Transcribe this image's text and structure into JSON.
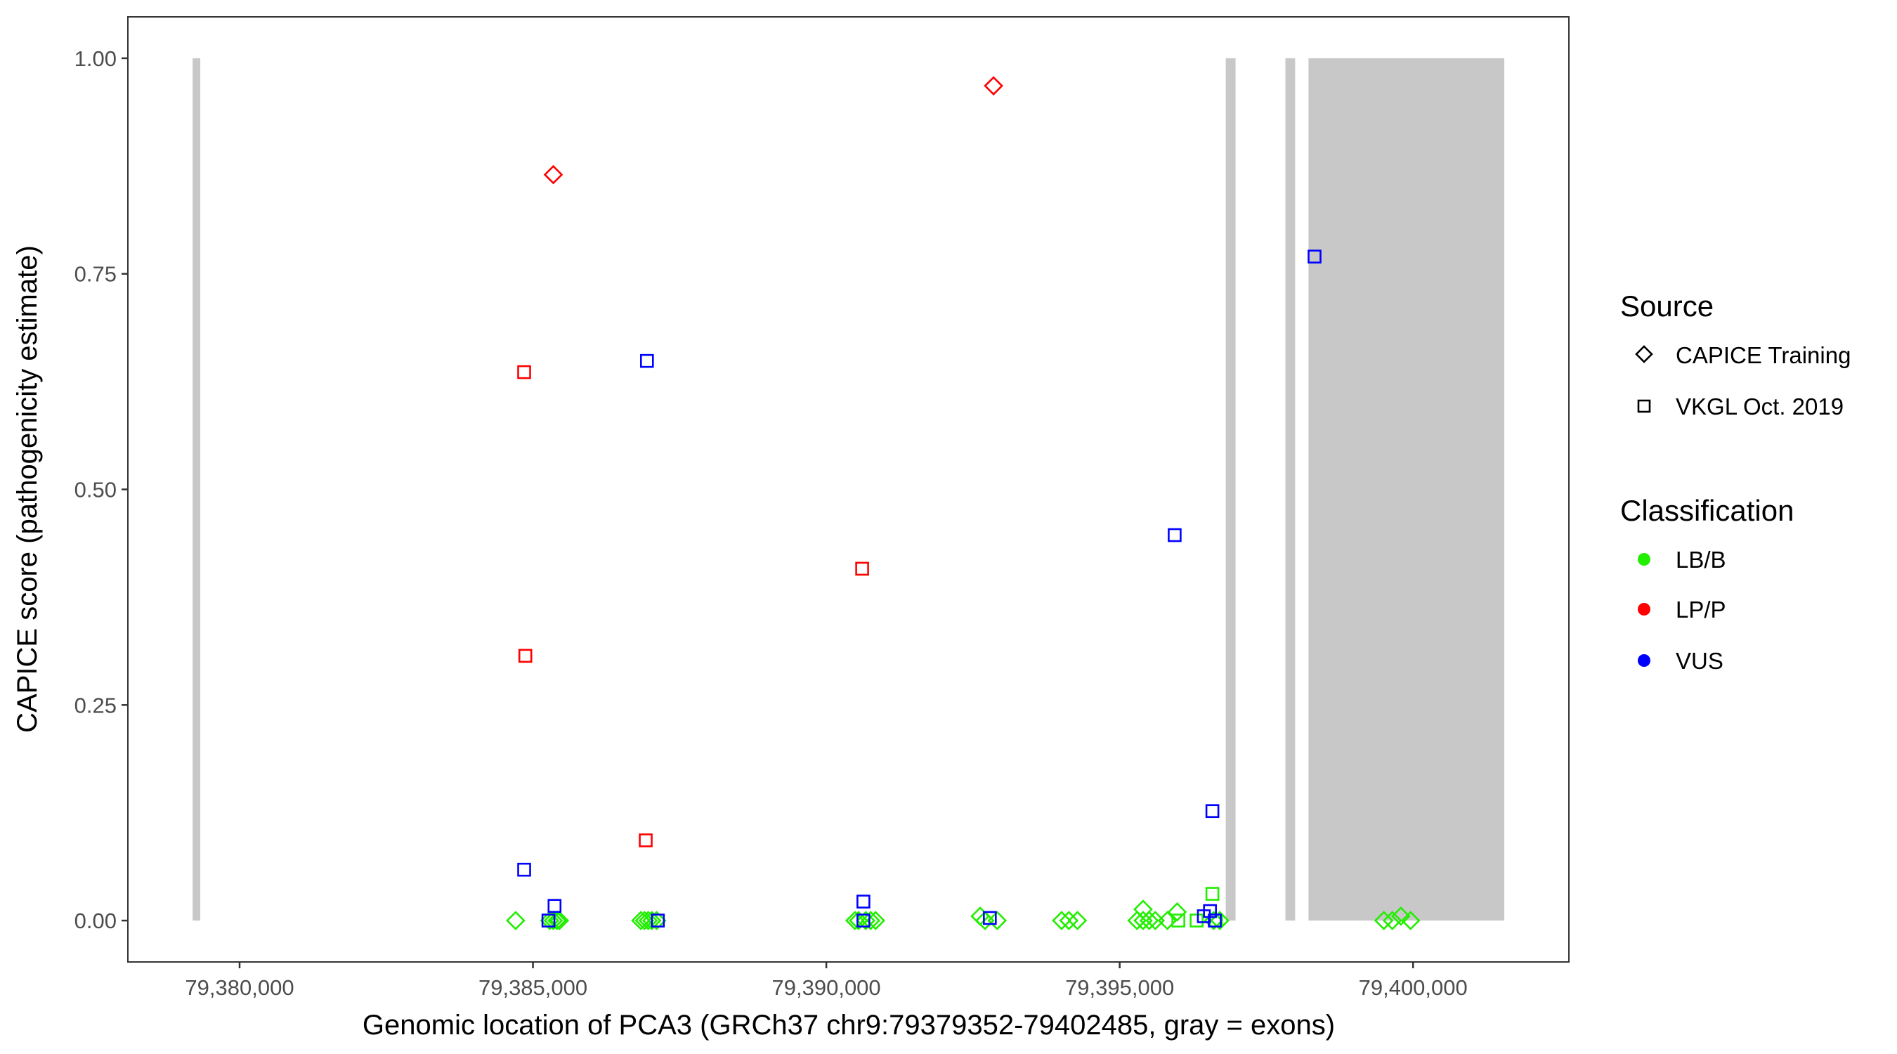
{
  "chart_data": {
    "type": "scatter",
    "title": "",
    "xlabel": "Genomic location of PCA3 (GRCh37 chr9:79379352-79402485, gray = exons)",
    "ylabel": "CAPICE score (pathogenicity estimate)",
    "xlim": [
      79378096,
      79402656
    ],
    "ylim": [
      -0.048,
      1.048
    ],
    "x_ticks": [
      79380000,
      79385000,
      79390000,
      79395000,
      79400000
    ],
    "x_tick_labels": [
      "79,380,000",
      "79,385,000",
      "79,390,000",
      "79,395,000",
      "79,400,000"
    ],
    "y_ticks": [
      0,
      0.25,
      0.5,
      0.75,
      1.0
    ],
    "y_tick_labels": [
      "0.00",
      "0.25",
      "0.50",
      "0.75",
      "1.00"
    ],
    "grid": false,
    "exons": [
      [
        79379200,
        79379330
      ],
      [
        79396808,
        79396975
      ],
      [
        79397824,
        79397990
      ],
      [
        79398218,
        79401555
      ]
    ],
    "exon_ymax": 1.0,
    "exon_color": "#c8c8c8",
    "colors": {
      "LB/B": "#22ee00",
      "LP/P": "#ff0000",
      "VUS": "#0000ff"
    },
    "legend": {
      "placement": "right",
      "source_title": "Source",
      "source_items": [
        {
          "label": "CAPICE Training",
          "shape": "diamond"
        },
        {
          "label": "VKGL Oct. 2019",
          "shape": "square"
        }
      ],
      "class_title": "Classification",
      "class_items": [
        {
          "label": "LB/B",
          "color": "#22ee00"
        },
        {
          "label": "LP/P",
          "color": "#ff0000"
        },
        {
          "label": "VUS",
          "color": "#0000ff"
        }
      ]
    },
    "points": [
      {
        "x": 79385347,
        "y": 0.865,
        "source": "CAPICE Training",
        "class": "LP/P"
      },
      {
        "x": 79392850,
        "y": 0.968,
        "source": "CAPICE Training",
        "class": "LP/P"
      },
      {
        "x": 79384850,
        "y": 0.636,
        "source": "VKGL Oct. 2019",
        "class": "LP/P"
      },
      {
        "x": 79384870,
        "y": 0.307,
        "source": "VKGL Oct. 2019",
        "class": "LP/P"
      },
      {
        "x": 79386922,
        "y": 0.093,
        "source": "VKGL Oct. 2019",
        "class": "LP/P"
      },
      {
        "x": 79390611,
        "y": 0.408,
        "source": "VKGL Oct. 2019",
        "class": "LP/P"
      },
      {
        "x": 79384705,
        "y": 0.0,
        "source": "CAPICE Training",
        "class": "LB/B"
      },
      {
        "x": 79385285,
        "y": 0.0,
        "source": "CAPICE Training",
        "class": "LB/B"
      },
      {
        "x": 79385347,
        "y": 0.0,
        "source": "CAPICE Training",
        "class": "LB/B"
      },
      {
        "x": 79385409,
        "y": 0.0,
        "source": "CAPICE Training",
        "class": "LB/B"
      },
      {
        "x": 79385451,
        "y": 0.0,
        "source": "CAPICE Training",
        "class": "LB/B"
      },
      {
        "x": 79386839,
        "y": 0.0,
        "source": "CAPICE Training",
        "class": "LB/B"
      },
      {
        "x": 79386901,
        "y": 0.0,
        "source": "CAPICE Training",
        "class": "LB/B"
      },
      {
        "x": 79386964,
        "y": 0.0,
        "source": "CAPICE Training",
        "class": "LB/B"
      },
      {
        "x": 79387026,
        "y": 0.0,
        "source": "CAPICE Training",
        "class": "LB/B"
      },
      {
        "x": 79387109,
        "y": 0.0,
        "source": "CAPICE Training",
        "class": "LB/B"
      },
      {
        "x": 79390487,
        "y": 0.0,
        "source": "CAPICE Training",
        "class": "LB/B"
      },
      {
        "x": 79390549,
        "y": 0.0,
        "source": "CAPICE Training",
        "class": "LB/B"
      },
      {
        "x": 79390673,
        "y": 0.0,
        "source": "CAPICE Training",
        "class": "LB/B"
      },
      {
        "x": 79390756,
        "y": 0.0,
        "source": "CAPICE Training",
        "class": "LB/B"
      },
      {
        "x": 79390839,
        "y": 0.0,
        "source": "CAPICE Training",
        "class": "LB/B"
      },
      {
        "x": 79392622,
        "y": 0.005,
        "source": "CAPICE Training",
        "class": "LB/B"
      },
      {
        "x": 79392704,
        "y": 0.0,
        "source": "CAPICE Training",
        "class": "LB/B"
      },
      {
        "x": 79392912,
        "y": 0.0,
        "source": "CAPICE Training",
        "class": "LB/B"
      },
      {
        "x": 79394010,
        "y": 0.0,
        "source": "CAPICE Training",
        "class": "LB/B"
      },
      {
        "x": 79394134,
        "y": 0.0,
        "source": "CAPICE Training",
        "class": "LB/B"
      },
      {
        "x": 79394280,
        "y": 0.0,
        "source": "CAPICE Training",
        "class": "LB/B"
      },
      {
        "x": 79395295,
        "y": 0.0,
        "source": "CAPICE Training",
        "class": "LB/B"
      },
      {
        "x": 79395399,
        "y": 0.0,
        "source": "CAPICE Training",
        "class": "LB/B"
      },
      {
        "x": 79395399,
        "y": 0.013,
        "source": "CAPICE Training",
        "class": "LB/B"
      },
      {
        "x": 79395502,
        "y": 0.0,
        "source": "CAPICE Training",
        "class": "LB/B"
      },
      {
        "x": 79395606,
        "y": 0.0,
        "source": "CAPICE Training",
        "class": "LB/B"
      },
      {
        "x": 79395813,
        "y": 0.0,
        "source": "CAPICE Training",
        "class": "LB/B"
      },
      {
        "x": 79395979,
        "y": 0.01,
        "source": "CAPICE Training",
        "class": "LB/B"
      },
      {
        "x": 79396601,
        "y": 0.0,
        "source": "CAPICE Training",
        "class": "LB/B"
      },
      {
        "x": 79396705,
        "y": 0.0,
        "source": "CAPICE Training",
        "class": "LB/B"
      },
      {
        "x": 79399502,
        "y": 0.0,
        "source": "CAPICE Training",
        "class": "LB/B"
      },
      {
        "x": 79399647,
        "y": 0.0,
        "source": "CAPICE Training",
        "class": "LB/B"
      },
      {
        "x": 79399792,
        "y": 0.005,
        "source": "CAPICE Training",
        "class": "LB/B"
      },
      {
        "x": 79399958,
        "y": 0.0,
        "source": "CAPICE Training",
        "class": "LB/B"
      },
      {
        "x": 79396580,
        "y": 0.031,
        "source": "VKGL Oct. 2019",
        "class": "LB/B"
      },
      {
        "x": 79396000,
        "y": 0.0,
        "source": "VKGL Oct. 2019",
        "class": "LB/B"
      },
      {
        "x": 79396311,
        "y": 0.0,
        "source": "VKGL Oct. 2019",
        "class": "LB/B"
      },
      {
        "x": 79396642,
        "y": 0.0,
        "source": "VKGL Oct. 2019",
        "class": "LB/B"
      },
      {
        "x": 79386943,
        "y": 0.649,
        "source": "VKGL Oct. 2019",
        "class": "VUS"
      },
      {
        "x": 79384850,
        "y": 0.059,
        "source": "VKGL Oct. 2019",
        "class": "VUS"
      },
      {
        "x": 79385368,
        "y": 0.017,
        "source": "VKGL Oct. 2019",
        "class": "VUS"
      },
      {
        "x": 79385264,
        "y": 0.0,
        "source": "VKGL Oct. 2019",
        "class": "VUS"
      },
      {
        "x": 79387129,
        "y": 0.0,
        "source": "VKGL Oct. 2019",
        "class": "VUS"
      },
      {
        "x": 79390632,
        "y": 0.022,
        "source": "VKGL Oct. 2019",
        "class": "VUS"
      },
      {
        "x": 79390632,
        "y": 0.0,
        "source": "VKGL Oct. 2019",
        "class": "VUS"
      },
      {
        "x": 79392787,
        "y": 0.003,
        "source": "VKGL Oct. 2019",
        "class": "VUS"
      },
      {
        "x": 79395937,
        "y": 0.447,
        "source": "VKGL Oct. 2019",
        "class": "VUS"
      },
      {
        "x": 79396580,
        "y": 0.127,
        "source": "VKGL Oct. 2019",
        "class": "VUS"
      },
      {
        "x": 79396539,
        "y": 0.011,
        "source": "VKGL Oct. 2019",
        "class": "VUS"
      },
      {
        "x": 79396435,
        "y": 0.005,
        "source": "VKGL Oct. 2019",
        "class": "VUS"
      },
      {
        "x": 79396621,
        "y": 0.0,
        "source": "VKGL Oct. 2019",
        "class": "VUS"
      },
      {
        "x": 79398321,
        "y": 0.77,
        "source": "VKGL Oct. 2019",
        "class": "VUS"
      }
    ]
  }
}
